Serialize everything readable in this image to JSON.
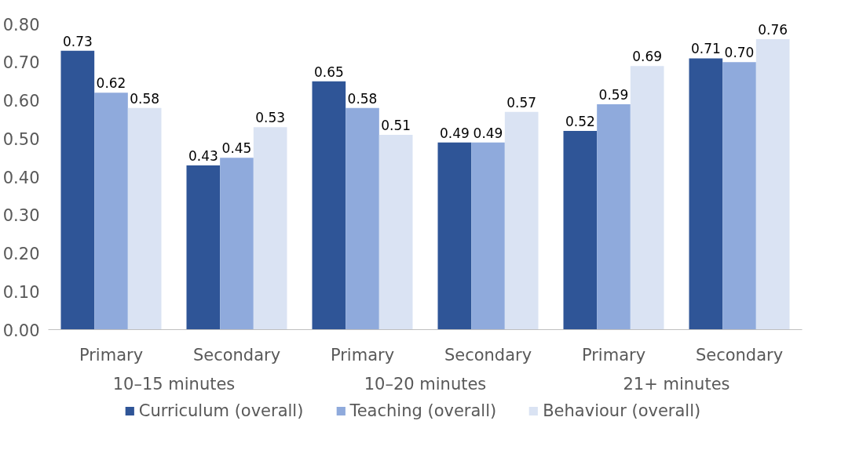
{
  "chart_data": {
    "type": "bar",
    "categories": [
      "Primary",
      "Secondary",
      "Primary",
      "Secondary",
      "Primary",
      "Secondary"
    ],
    "series": [
      {
        "name": "Curriculum (overall)",
        "color": "#2f5597",
        "values": [
          0.73,
          0.43,
          0.65,
          0.49,
          0.52,
          0.71
        ],
        "value_labels": [
          "0.73",
          "0.43",
          "0.65",
          "0.49",
          "0.52",
          "0.71"
        ]
      },
      {
        "name": "Teaching (overall)",
        "color": "#8faadc",
        "values": [
          0.62,
          0.45,
          0.58,
          0.49,
          0.59,
          0.7
        ],
        "value_labels": [
          "0.62",
          "0.45",
          "0.58",
          "0.49",
          "0.59",
          "0.70"
        ]
      },
      {
        "name": "Behaviour (overall)",
        "color": "#dae3f3",
        "values": [
          0.58,
          0.53,
          0.51,
          0.57,
          0.69,
          0.76
        ],
        "value_labels": [
          "0.58",
          "0.53",
          "0.51",
          "0.57",
          "0.69",
          "0.76"
        ]
      }
    ],
    "annotations": [
      "10–15 minutes",
      "10–20 minutes",
      "21+ minutes"
    ],
    "ylim": [
      0,
      0.8
    ],
    "yticks": [
      {
        "value": 0,
        "label": "0.00"
      },
      {
        "value": 0.1,
        "label": "0.10"
      },
      {
        "value": 0.2,
        "label": "0.20"
      },
      {
        "value": 0.3,
        "label": "0.30"
      },
      {
        "value": 0.4,
        "label": "0.40"
      },
      {
        "value": 0.5,
        "label": "0.50"
      },
      {
        "value": 0.6,
        "label": "0.60"
      },
      {
        "value": 0.7,
        "label": "0.70"
      },
      {
        "value": 0.8,
        "label": "0.80"
      }
    ],
    "grid": false,
    "legend": "bottom"
  }
}
